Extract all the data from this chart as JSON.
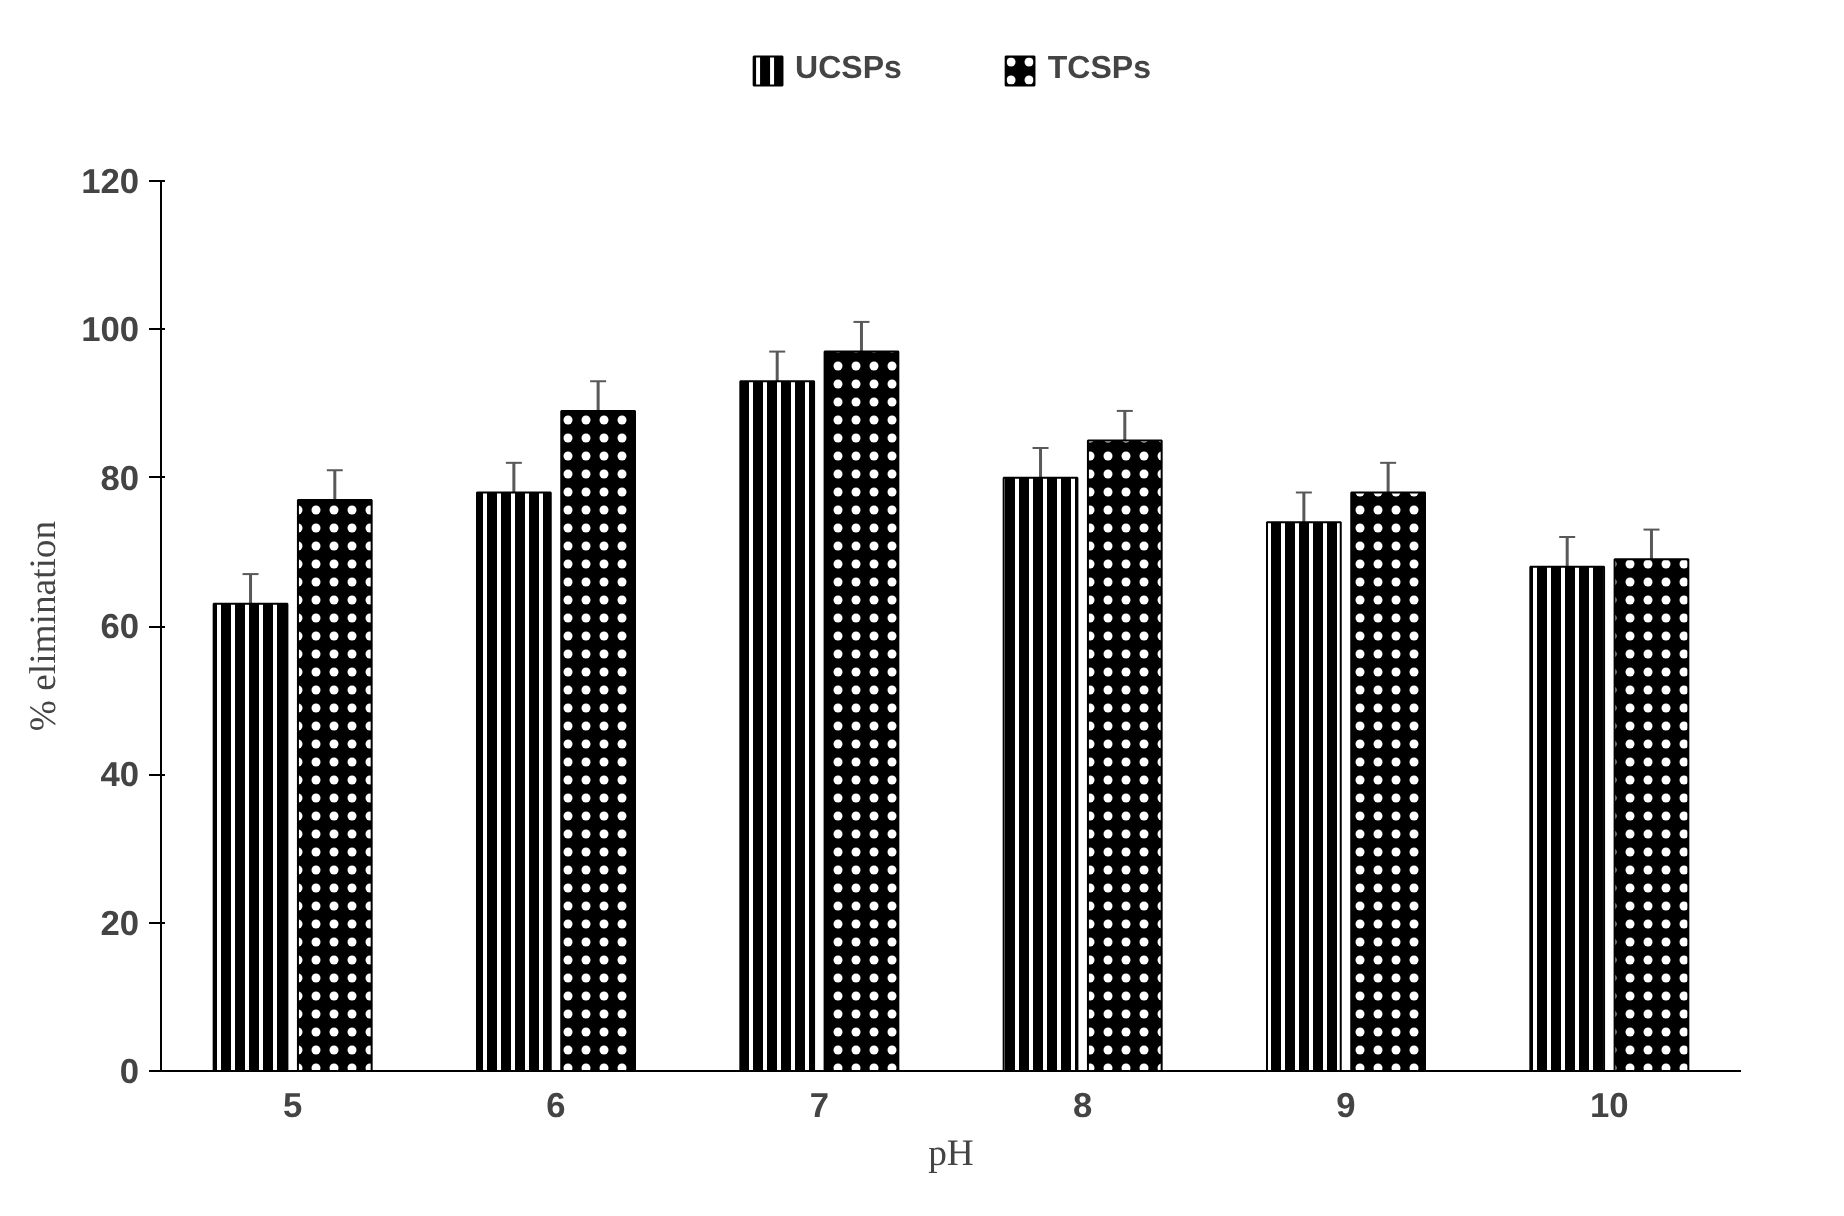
{
  "chart_data": {
    "type": "bar",
    "xlabel": "pH",
    "ylabel": "% elimination",
    "categories": [
      "5",
      "6",
      "7",
      "8",
      "9",
      "10"
    ],
    "series": [
      {
        "name": "UCSPs",
        "color": "#000000",
        "values": [
          63,
          78,
          93,
          80,
          74,
          68
        ],
        "errors": [
          4,
          4,
          4,
          4,
          4,
          4
        ]
      },
      {
        "name": "TCSPs",
        "color": "#000000",
        "values": [
          77,
          89,
          97,
          85,
          78,
          69
        ],
        "errors": [
          4,
          4,
          4,
          4,
          4,
          4
        ]
      }
    ],
    "ylim": [
      0,
      120
    ],
    "yticks": [
      0,
      20,
      40,
      60,
      80,
      100,
      120
    ],
    "grid": false,
    "legend": "top"
  }
}
